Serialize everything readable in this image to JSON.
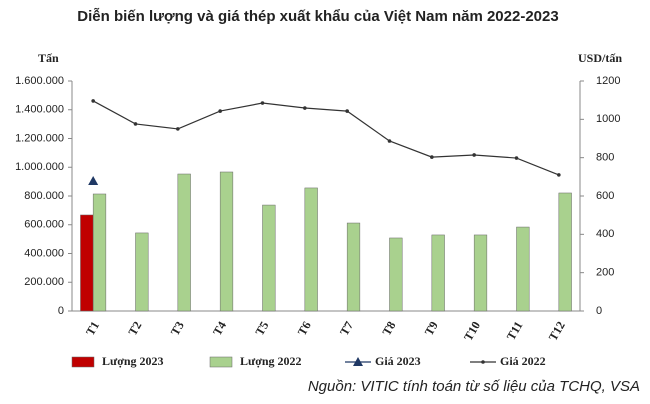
{
  "chart_data": {
    "type": "bar",
    "title": "Diễn biến lượng và giá thép xuất khẩu của Việt Nam năm 2022-2023",
    "y_label": "Tấn",
    "y2_label": "USD/tấn",
    "source": "Nguồn: VITIC tính toán từ số liệu của TCHQ, VSA",
    "categories": [
      "T1",
      "T2",
      "T3",
      "T4",
      "T5",
      "T6",
      "T7",
      "T8",
      "T9",
      "T10",
      "T11",
      "T12"
    ],
    "series": [
      {
        "name": "Lượng 2023",
        "type": "bar",
        "color": "#c00000",
        "values": [
          668000,
          null,
          null,
          null,
          null,
          null,
          null,
          null,
          null,
          null,
          null,
          null
        ]
      },
      {
        "name": "Lượng 2022",
        "type": "bar",
        "color": "#a9d18e",
        "values": [
          814000,
          543000,
          953000,
          967000,
          737000,
          856000,
          612000,
          508000,
          529000,
          529000,
          584000,
          821000
        ]
      },
      {
        "name": "Giá 2023",
        "type": "line",
        "axis": "y2",
        "color": "#1f3864",
        "values": [
          678,
          null,
          null,
          null,
          null,
          null,
          null,
          null,
          null,
          null,
          null,
          null
        ]
      },
      {
        "name": "Giá 2022",
        "type": "line",
        "axis": "y2",
        "color": "#333333",
        "values": [
          1096,
          976,
          950,
          1043,
          1085,
          1059,
          1043,
          887,
          803,
          814,
          798,
          710
        ]
      }
    ],
    "ylim": [
      0,
      1600000
    ],
    "yticks": [
      0,
      {
        "value": 200000,
        "label": "200.000"
      },
      {
        "value": 400000,
        "label": "400.000"
      },
      {
        "value": 600000,
        "label": "600.000"
      },
      {
        "value": 800000,
        "label": "800.000"
      },
      {
        "value": 1000000,
        "label": "1.000.000"
      },
      {
        "value": 1200000,
        "label": "1.200.000"
      },
      {
        "value": 1400000,
        "label": "1.400.000"
      },
      {
        "value": 1600000,
        "label": "1.600.000"
      }
    ],
    "y2lim": [
      0,
      1200
    ],
    "y2ticks": [
      0,
      200,
      400,
      600,
      800,
      1000,
      1200
    ],
    "grid": false
  }
}
